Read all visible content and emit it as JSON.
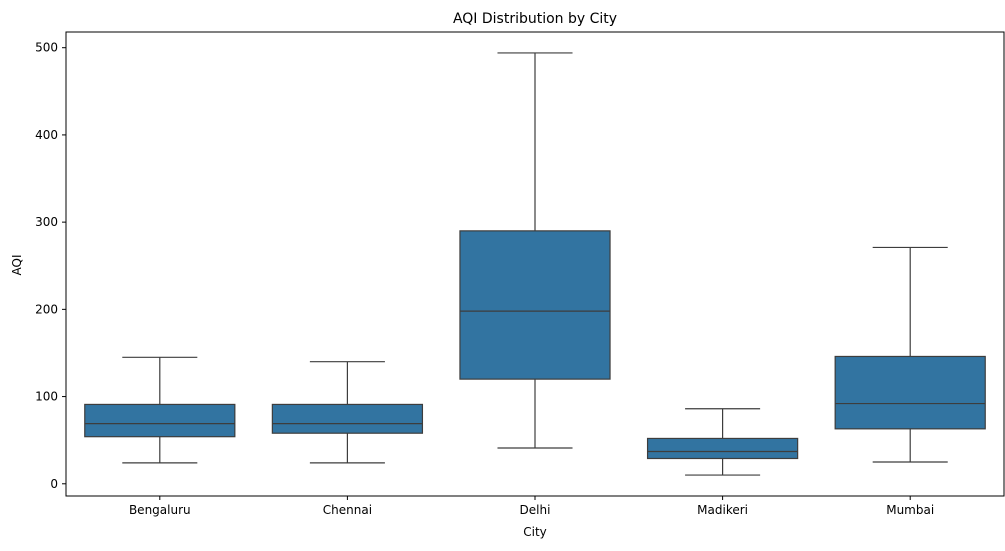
{
  "chart_data": {
    "type": "box",
    "title": "AQI Distribution by City",
    "xlabel": "City",
    "ylabel": "AQI",
    "ylim": [
      -14,
      518
    ],
    "yticks": [
      0,
      100,
      200,
      300,
      400,
      500
    ],
    "grid": false,
    "legend": "none",
    "colors": {
      "box_fill": "#3274a1",
      "line": "#3d3d3d",
      "axis": "#000000"
    },
    "categories": [
      "Bengaluru",
      "Chennai",
      "Delhi",
      "Madikeri",
      "Mumbai"
    ],
    "boxes": [
      {
        "category": "Bengaluru",
        "whisker_low": 24,
        "q1": 54,
        "median": 69,
        "q3": 91,
        "whisker_high": 145
      },
      {
        "category": "Chennai",
        "whisker_low": 24,
        "q1": 58,
        "median": 69,
        "q3": 91,
        "whisker_high": 140
      },
      {
        "category": "Delhi",
        "whisker_low": 41,
        "q1": 120,
        "median": 198,
        "q3": 290,
        "whisker_high": 494
      },
      {
        "category": "Madikeri",
        "whisker_low": 10,
        "q1": 29,
        "median": 37,
        "q3": 52,
        "whisker_high": 86
      },
      {
        "category": "Mumbai",
        "whisker_low": 25,
        "q1": 63,
        "median": 92,
        "q3": 146,
        "whisker_high": 271
      }
    ]
  }
}
